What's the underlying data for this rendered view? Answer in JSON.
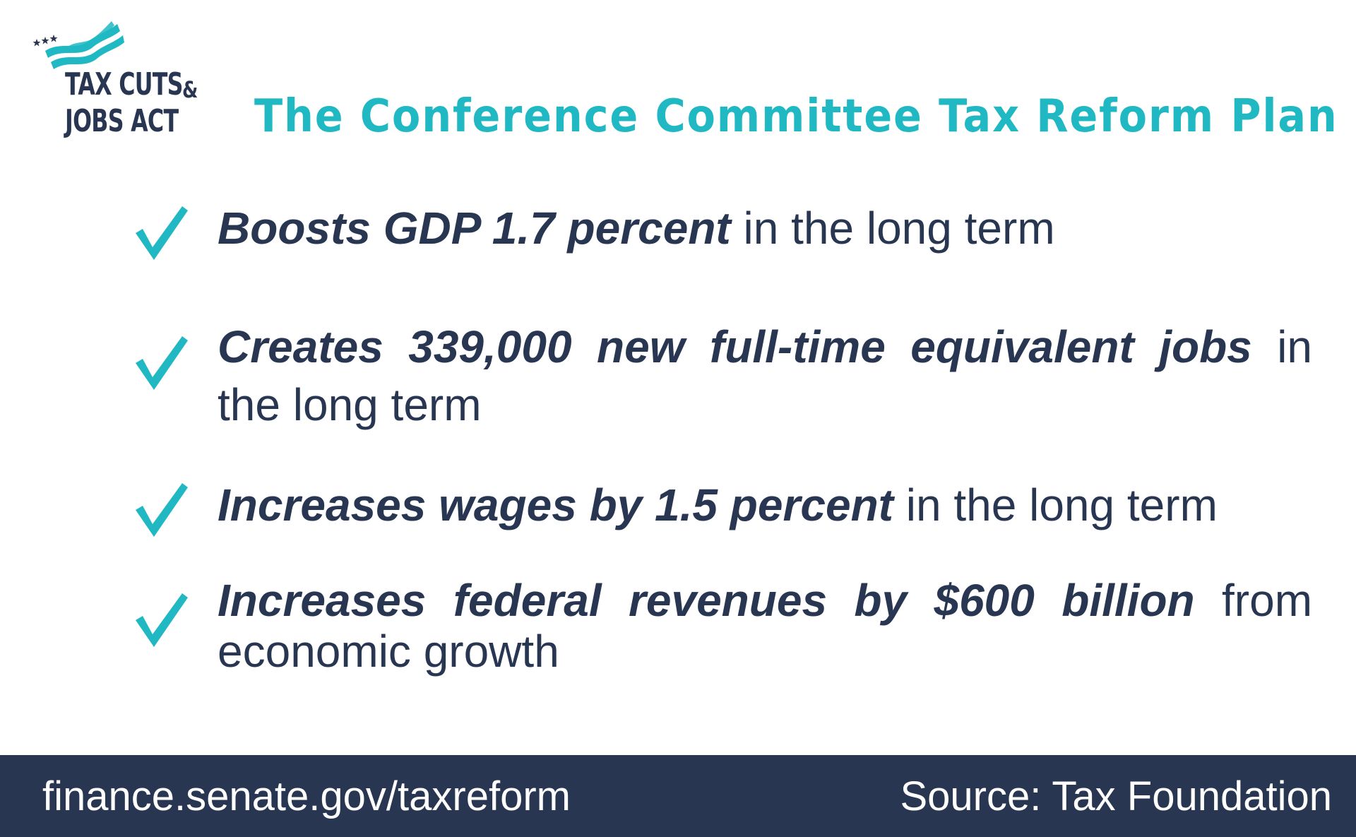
{
  "logo": {
    "line1": "TAX CUTS",
    "amp": "&",
    "line2": "JOBS ACT",
    "icon": "flag-with-stars-icon"
  },
  "title": "The Conference Committee Tax Reform Plan",
  "bullets": [
    {
      "icon": "checkmark-icon",
      "bold": "Boosts GDP 1.7 percent",
      "rest": " in the long term"
    },
    {
      "icon": "checkmark-icon",
      "bold": "Creates 339,000 new full-time equivalent jobs",
      "rest": " in the long term"
    },
    {
      "icon": "checkmark-icon",
      "bold": "Increases wages by 1.5 percent",
      "rest": " in the long term"
    },
    {
      "icon": "checkmark-icon",
      "bold": "Increases federal revenues by $600 billion",
      "rest": " from economic growth"
    }
  ],
  "footer": {
    "url": "finance.senate.gov/taxreform",
    "source": "Source: Tax Foundation"
  },
  "colors": {
    "accent": "#1fb8c3",
    "navy": "#283652",
    "background": "#ffffff"
  }
}
